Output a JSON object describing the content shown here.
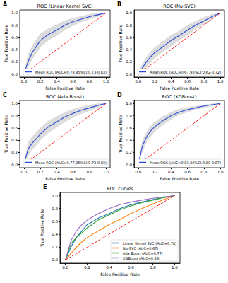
{
  "chart_data": [
    {
      "type": "line",
      "annotation": "A",
      "title": "ROC (Linear Kernel SVC)",
      "x_label": "False Positive Rate",
      "y_label": "True Positive Rate",
      "xlim": [
        -0.05,
        1.05
      ],
      "ylim": [
        -0.05,
        1.05
      ],
      "xticks": [
        {
          "value": 0,
          "label": "0.0"
        },
        0.2,
        0.4,
        0.6,
        0.8,
        {
          "value": 1,
          "label": "1.0"
        }
      ],
      "yticks": [
        {
          "value": 0,
          "label": "0.0"
        },
        0.2,
        0.4,
        0.6,
        0.8,
        {
          "value": 1,
          "label": "1.0"
        }
      ],
      "legend": "lower right",
      "grid": false,
      "x": [
        0,
        0.05,
        0.1,
        0.15,
        0.2,
        0.3,
        0.4,
        0.5,
        0.6,
        0.7,
        0.8,
        0.9,
        1.0
      ],
      "series": [
        {
          "name": "Mean ROC (AUC=0.78,95%CI:0.73-0.83)",
          "color": "#2b4bd6",
          "values": [
            0,
            0.2,
            0.35,
            0.45,
            0.55,
            0.65,
            0.72,
            0.8,
            0.86,
            0.9,
            0.94,
            0.97,
            1.0
          ],
          "lower": [
            0,
            0.1,
            0.24,
            0.34,
            0.44,
            0.55,
            0.63,
            0.72,
            0.79,
            0.85,
            0.9,
            0.94,
            1.0
          ],
          "upper": [
            0.02,
            0.32,
            0.46,
            0.56,
            0.66,
            0.75,
            0.81,
            0.88,
            0.92,
            0.95,
            0.98,
            1.0,
            1.0
          ]
        },
        {
          "color": "#ff0000",
          "line_style": "dashed",
          "values": [
            0,
            0.05,
            0.1,
            0.15,
            0.2,
            0.3,
            0.4,
            0.5,
            0.6,
            0.7,
            0.8,
            0.9,
            1.0
          ]
        }
      ]
    },
    {
      "type": "line",
      "annotation": "B",
      "title": "ROC (Nu-SVC)",
      "x_label": "False Positive Rate",
      "y_label": "True Positive Rate",
      "xlim": [
        -0.05,
        1.05
      ],
      "ylim": [
        -0.05,
        1.05
      ],
      "xticks": [
        {
          "value": 0,
          "label": "0.0"
        },
        0.2,
        0.4,
        0.6,
        0.8,
        {
          "value": 1,
          "label": "1.0"
        }
      ],
      "yticks": [
        {
          "value": 0,
          "label": "0.0"
        },
        0.2,
        0.4,
        0.6,
        0.8,
        {
          "value": 1,
          "label": "1.0"
        }
      ],
      "legend": "lower right",
      "grid": false,
      "x": [
        0,
        0.05,
        0.1,
        0.15,
        0.2,
        0.3,
        0.4,
        0.5,
        0.6,
        0.7,
        0.8,
        0.9,
        1.0
      ],
      "series": [
        {
          "name": "Mean ROC (AUC=0.67,95%CI:0.62-0.72)",
          "color": "#2b4bd6",
          "values": [
            0,
            0.1,
            0.2,
            0.28,
            0.35,
            0.45,
            0.55,
            0.63,
            0.72,
            0.8,
            0.87,
            0.94,
            1.0
          ],
          "lower": [
            0,
            0.04,
            0.12,
            0.19,
            0.26,
            0.36,
            0.46,
            0.55,
            0.64,
            0.73,
            0.81,
            0.9,
            1.0
          ],
          "upper": [
            0.02,
            0.17,
            0.28,
            0.37,
            0.44,
            0.54,
            0.64,
            0.71,
            0.8,
            0.87,
            0.93,
            0.98,
            1.0
          ]
        },
        {
          "color": "#ff0000",
          "line_style": "dashed",
          "values": [
            0,
            0.05,
            0.1,
            0.15,
            0.2,
            0.3,
            0.4,
            0.5,
            0.6,
            0.7,
            0.8,
            0.9,
            1.0
          ]
        }
      ]
    },
    {
      "type": "line",
      "annotation": "C",
      "title": "ROC (Ada Boost)",
      "x_label": "False Positive Rate",
      "y_label": "True Positive Rate",
      "xlim": [
        -0.05,
        1.05
      ],
      "ylim": [
        -0.05,
        1.05
      ],
      "xticks": [
        {
          "value": 0,
          "label": "0.0"
        },
        0.2,
        0.4,
        0.6,
        0.8,
        {
          "value": 1,
          "label": "1.0"
        }
      ],
      "yticks": [
        {
          "value": 0,
          "label": "0.0"
        },
        0.2,
        0.4,
        0.6,
        0.8,
        {
          "value": 1,
          "label": "1.0"
        }
      ],
      "legend": "lower right",
      "grid": false,
      "x": [
        0,
        0.05,
        0.1,
        0.15,
        0.2,
        0.3,
        0.4,
        0.5,
        0.6,
        0.7,
        0.8,
        0.9,
        1.0
      ],
      "series": [
        {
          "name": "Mean ROC (AUC=0.77,95%CI:0.72-0.83)",
          "color": "#2b4bd6",
          "values": [
            0,
            0.25,
            0.35,
            0.42,
            0.5,
            0.62,
            0.7,
            0.78,
            0.84,
            0.89,
            0.93,
            0.97,
            1.0
          ],
          "lower": [
            0,
            0.14,
            0.24,
            0.31,
            0.4,
            0.52,
            0.61,
            0.7,
            0.77,
            0.83,
            0.88,
            0.93,
            1.0
          ],
          "upper": [
            0.03,
            0.36,
            0.46,
            0.53,
            0.6,
            0.72,
            0.79,
            0.86,
            0.91,
            0.95,
            0.98,
            1.0,
            1.0
          ]
        },
        {
          "color": "#ff0000",
          "line_style": "dashed",
          "values": [
            0,
            0.05,
            0.1,
            0.15,
            0.2,
            0.3,
            0.4,
            0.5,
            0.6,
            0.7,
            0.8,
            0.9,
            1.0
          ]
        }
      ]
    },
    {
      "type": "line",
      "annotation": "D",
      "title": "ROC (XGBoost)",
      "x_label": "False Positive Rate",
      "y_label": "True Positive Rate",
      "xlim": [
        -0.05,
        1.05
      ],
      "ylim": [
        -0.05,
        1.05
      ],
      "xticks": [
        {
          "value": 0,
          "label": "0.0"
        },
        0.2,
        0.4,
        0.6,
        0.8,
        {
          "value": 1,
          "label": "1.0"
        }
      ],
      "yticks": [
        {
          "value": 0,
          "label": "0.0"
        },
        0.2,
        0.4,
        0.6,
        0.8,
        {
          "value": 1,
          "label": "1.0"
        }
      ],
      "legend": "lower right",
      "grid": false,
      "x": [
        0,
        0.05,
        0.1,
        0.15,
        0.2,
        0.3,
        0.4,
        0.5,
        0.6,
        0.7,
        0.8,
        0.9,
        1.0
      ],
      "series": [
        {
          "name": "Mean ROC (AUC=0.83,95%CI:0.80-0.87)",
          "color": "#2b4bd6",
          "values": [
            0,
            0.3,
            0.45,
            0.55,
            0.62,
            0.72,
            0.8,
            0.86,
            0.9,
            0.93,
            0.96,
            0.98,
            1.0
          ],
          "lower": [
            0,
            0.2,
            0.36,
            0.46,
            0.54,
            0.65,
            0.74,
            0.81,
            0.86,
            0.9,
            0.93,
            0.96,
            1.0
          ],
          "upper": [
            0.04,
            0.4,
            0.54,
            0.64,
            0.7,
            0.79,
            0.86,
            0.91,
            0.94,
            0.96,
            0.98,
            1.0,
            1.0
          ]
        },
        {
          "color": "#ff0000",
          "line_style": "dashed",
          "values": [
            0,
            0.05,
            0.1,
            0.15,
            0.2,
            0.3,
            0.4,
            0.5,
            0.6,
            0.7,
            0.8,
            0.9,
            1.0
          ]
        }
      ]
    },
    {
      "type": "line",
      "annotation": "E",
      "title": "ROC curves",
      "x_label": "False Positive Rate",
      "y_label": "True Positive Rate",
      "xlim": [
        -0.05,
        1.05
      ],
      "ylim": [
        -0.05,
        1.05
      ],
      "xticks": [
        {
          "value": 0,
          "label": "0.0"
        },
        0.2,
        0.4,
        0.6,
        0.8,
        {
          "value": 1,
          "label": "1.0"
        }
      ],
      "yticks": [
        {
          "value": 0,
          "label": "0.0"
        },
        0.2,
        0.4,
        0.6,
        0.8,
        {
          "value": 1,
          "label": "1.0"
        }
      ],
      "legend": "lower right",
      "grid": false,
      "x": [
        0,
        0.05,
        0.1,
        0.15,
        0.2,
        0.3,
        0.4,
        0.5,
        0.6,
        0.7,
        0.8,
        0.9,
        1.0
      ],
      "series": [
        {
          "name": "Linear Kernel SVC (AUC=0.78)",
          "color": "#1f77b4",
          "values": [
            0,
            0.2,
            0.35,
            0.45,
            0.55,
            0.65,
            0.72,
            0.8,
            0.86,
            0.9,
            0.94,
            0.97,
            1.0
          ]
        },
        {
          "name": "Nu-SVC (AUC=0.67)",
          "color": "#ff7f0e",
          "values": [
            0,
            0.1,
            0.2,
            0.28,
            0.35,
            0.45,
            0.55,
            0.63,
            0.72,
            0.8,
            0.87,
            0.94,
            1.0
          ]
        },
        {
          "name": "Ada Boost (AUC=0.77)",
          "color": "#2ca02c",
          "values": [
            0,
            0.25,
            0.35,
            0.42,
            0.5,
            0.62,
            0.7,
            0.78,
            0.84,
            0.89,
            0.93,
            0.97,
            1.0
          ]
        },
        {
          "name": "XGBoost (AUC=0.83)",
          "color": "#9467bd",
          "values": [
            0,
            0.3,
            0.45,
            0.55,
            0.62,
            0.72,
            0.8,
            0.86,
            0.9,
            0.93,
            0.96,
            0.98,
            1.0
          ]
        },
        {
          "color": "#ff0000",
          "line_style": "dashed",
          "values": [
            0,
            0.05,
            0.1,
            0.15,
            0.2,
            0.3,
            0.4,
            0.5,
            0.6,
            0.7,
            0.8,
            0.9,
            1.0
          ]
        }
      ]
    }
  ]
}
